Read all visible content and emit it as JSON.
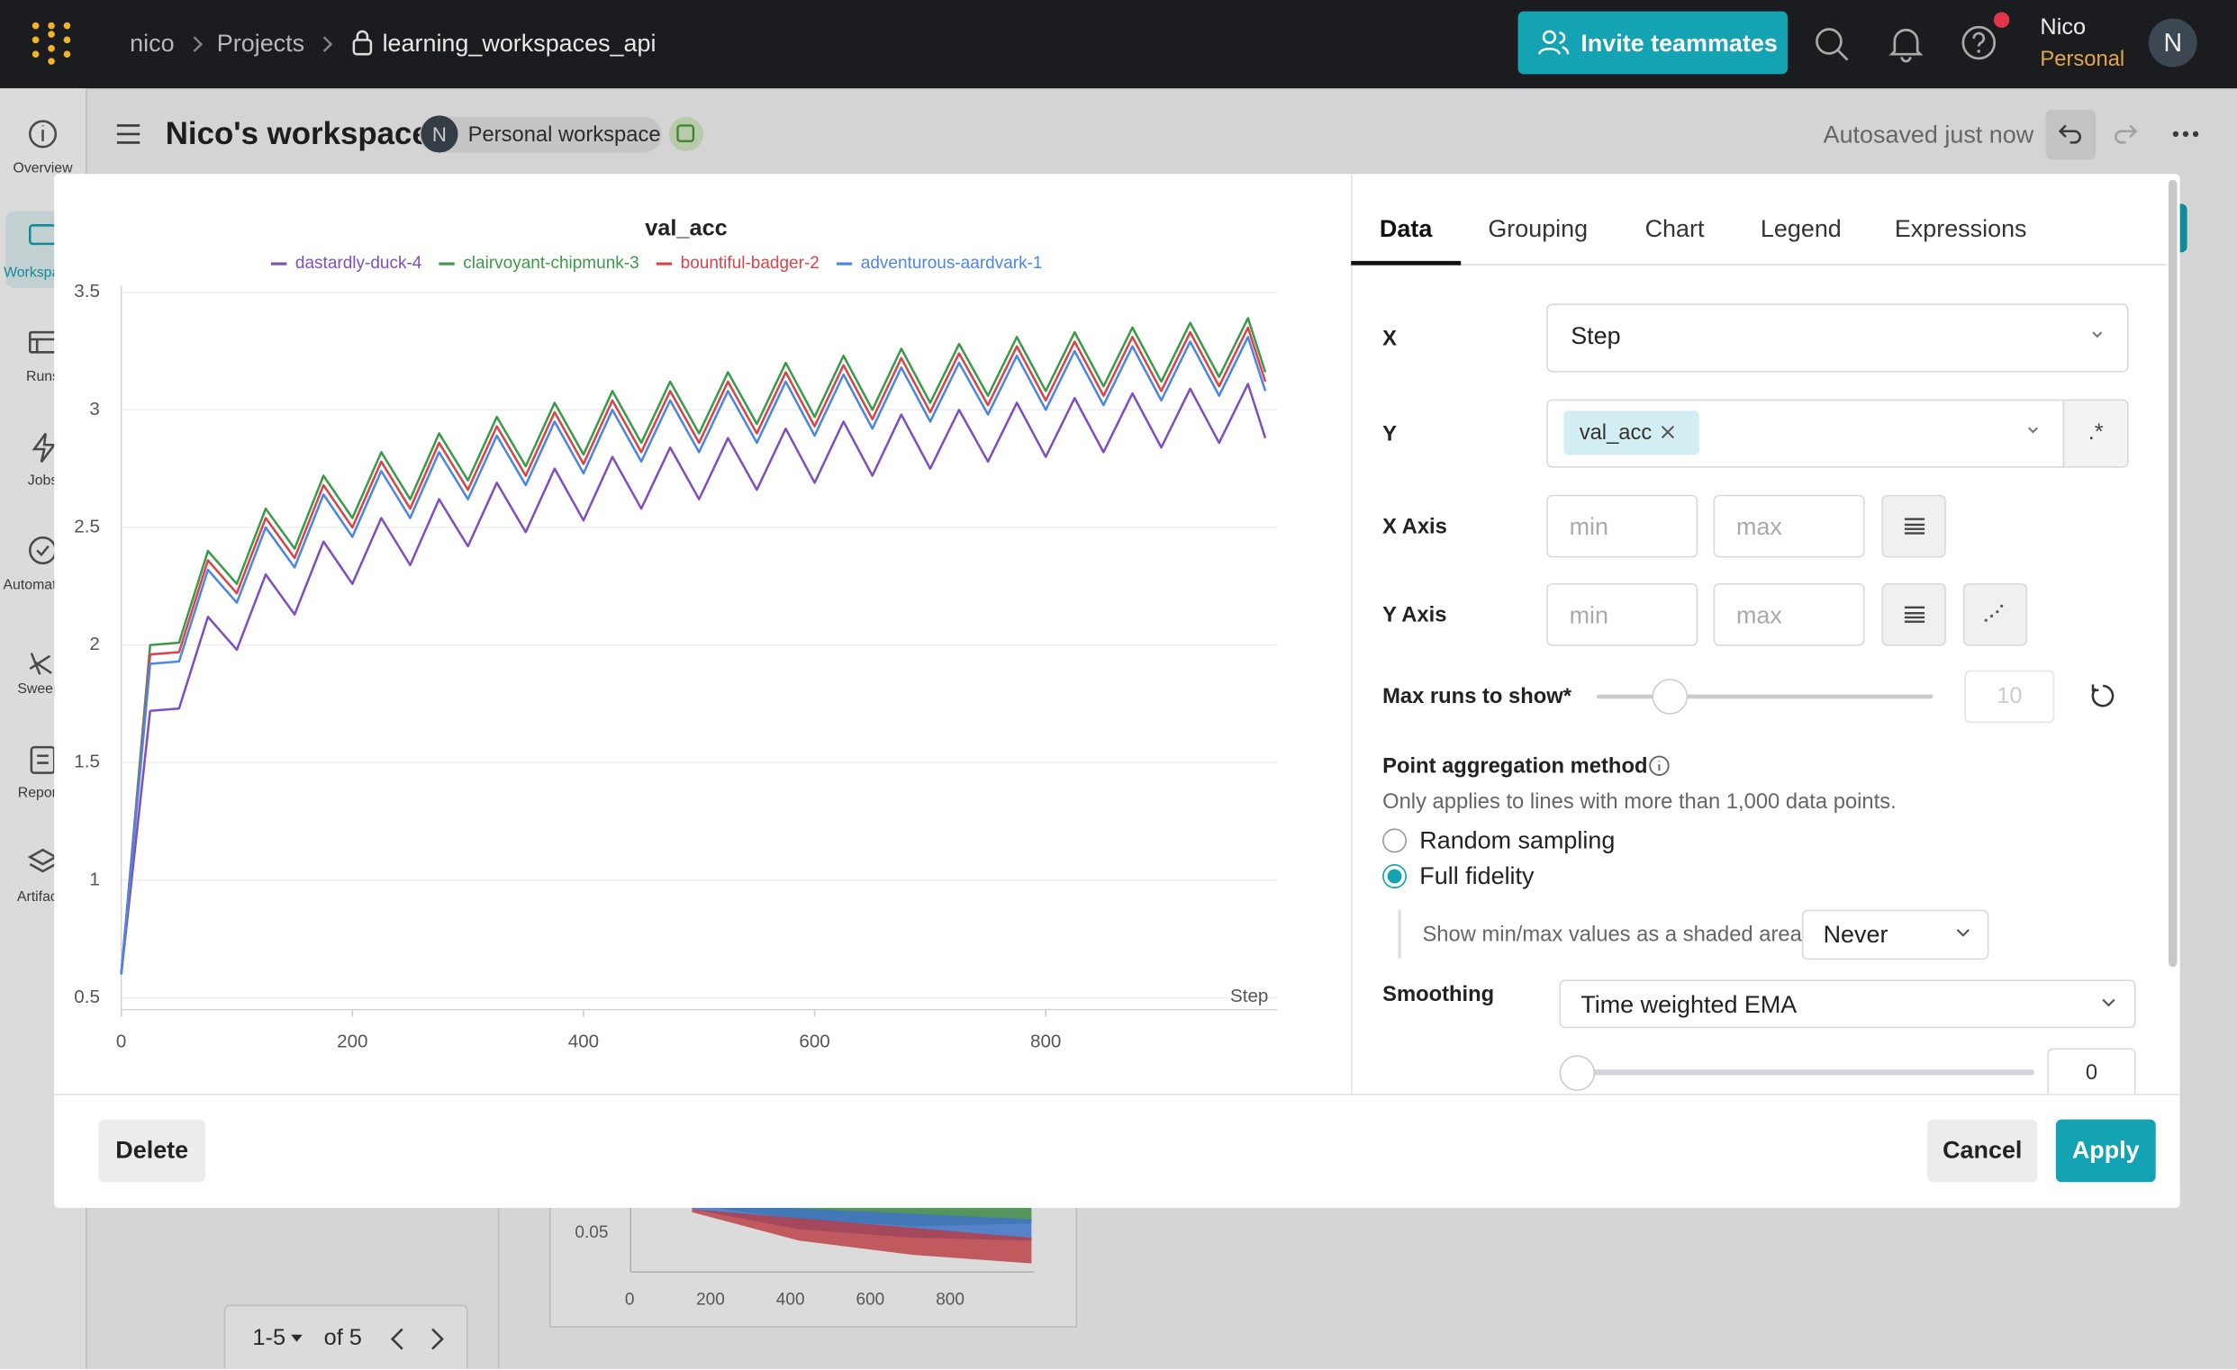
{
  "topbar": {
    "breadcrumb": [
      "nico",
      "Projects",
      "learning_workspaces_api"
    ],
    "invite_button": "Invite teammates",
    "user_name": "Nico",
    "user_plan": "Personal",
    "avatar": "N"
  },
  "sidebar": [
    "Overview",
    "Workspaces",
    "Runs",
    "Jobs",
    "Automations",
    "Sweeps",
    "Reports",
    "Artifacts"
  ],
  "workspace": {
    "title": "Nico's workspace",
    "avatar": "N",
    "badge": "Personal workspace",
    "status": "Autosaved just now"
  },
  "background_chart": {
    "ytick": "0.05",
    "xticks": [
      "0",
      "200",
      "400",
      "600",
      "800"
    ]
  },
  "pager": {
    "range": "1-5",
    "total": "of 5"
  },
  "editor": {
    "tabs": [
      "Data",
      "Grouping",
      "Chart",
      "Legend",
      "Expressions"
    ],
    "active_tab": 0,
    "x_label": "X",
    "x_value": "Step",
    "y_label": "Y",
    "y_chip": "val_acc",
    "regex": ".*",
    "x_axis": "X Axis",
    "y_axis": "Y Axis",
    "min": "min",
    "max": "max",
    "max_runs_label": "Max runs to show*",
    "max_runs": 10,
    "aggregation_title": "Point aggregation method",
    "aggregation_note": "Only applies to lines with more than 1,000 data points.",
    "options": [
      "Random sampling",
      "Full fidelity"
    ],
    "selected_option": 1,
    "shaded_label": "Show min/max values as a shaded area",
    "shaded_value": "Never",
    "smoothing_label": "Smoothing",
    "smoothing_method": "Time weighted EMA",
    "smoothing_value": 0,
    "buttons": {
      "delete": "Delete",
      "cancel": "Cancel",
      "apply": "Apply"
    }
  },
  "chart_data": {
    "type": "line",
    "title": "val_acc",
    "x_label": "Step",
    "x": [
      0,
      25,
      50,
      75,
      100,
      125,
      150,
      175,
      200,
      225,
      250,
      275,
      300,
      325,
      350,
      375,
      400,
      425,
      450,
      475,
      500,
      525,
      550,
      575,
      600,
      625,
      650,
      675,
      700,
      725,
      750,
      775,
      800,
      825,
      850,
      875,
      900,
      925,
      950,
      975,
      990
    ],
    "xlim": [
      0,
      1000
    ],
    "xticks": [
      0,
      200,
      400,
      600,
      800
    ],
    "ylim": [
      0.45,
      3.53
    ],
    "yticks": [
      0.5,
      1,
      1.5,
      2,
      2.5,
      3,
      3.5
    ],
    "grid": true,
    "series": [
      {
        "name": "dastardly-duck-4",
        "color": "#7e4fc1",
        "values": [
          0.6,
          1.72,
          1.73,
          2.12,
          1.98,
          2.3,
          2.13,
          2.44,
          2.26,
          2.54,
          2.34,
          2.62,
          2.42,
          2.69,
          2.48,
          2.75,
          2.53,
          2.8,
          2.58,
          2.84,
          2.62,
          2.88,
          2.66,
          2.92,
          2.69,
          2.95,
          2.72,
          2.98,
          2.75,
          3.0,
          2.78,
          3.03,
          2.8,
          3.05,
          2.82,
          3.07,
          2.84,
          3.09,
          2.86,
          3.11,
          2.88
        ]
      },
      {
        "name": "clairvoyant-chipmunk-3",
        "color": "#3a9a47",
        "values": [
          0.6,
          2.0,
          2.01,
          2.4,
          2.26,
          2.58,
          2.41,
          2.72,
          2.54,
          2.82,
          2.62,
          2.9,
          2.7,
          2.97,
          2.76,
          3.03,
          2.81,
          3.08,
          2.86,
          3.12,
          2.9,
          3.16,
          2.94,
          3.2,
          2.97,
          3.23,
          3.0,
          3.26,
          3.03,
          3.28,
          3.06,
          3.31,
          3.08,
          3.33,
          3.1,
          3.35,
          3.12,
          3.37,
          3.14,
          3.39,
          3.16
        ]
      },
      {
        "name": "bountiful-badger-2",
        "color": "#d9434a",
        "values": [
          0.6,
          1.96,
          1.97,
          2.36,
          2.22,
          2.54,
          2.37,
          2.68,
          2.5,
          2.78,
          2.58,
          2.86,
          2.66,
          2.93,
          2.72,
          2.99,
          2.77,
          3.04,
          2.82,
          3.08,
          2.86,
          3.12,
          2.9,
          3.16,
          2.93,
          3.19,
          2.96,
          3.22,
          2.99,
          3.24,
          3.02,
          3.27,
          3.04,
          3.29,
          3.06,
          3.31,
          3.08,
          3.33,
          3.1,
          3.35,
          3.12
        ]
      },
      {
        "name": "adventurous-aardvark-1",
        "color": "#4a86e8",
        "values": [
          0.6,
          1.92,
          1.93,
          2.32,
          2.18,
          2.5,
          2.33,
          2.64,
          2.46,
          2.74,
          2.54,
          2.82,
          2.62,
          2.89,
          2.68,
          2.95,
          2.73,
          3.0,
          2.78,
          3.04,
          2.82,
          3.08,
          2.86,
          3.12,
          2.89,
          3.15,
          2.92,
          3.18,
          2.95,
          3.2,
          2.98,
          3.23,
          3.0,
          3.25,
          3.02,
          3.27,
          3.04,
          3.29,
          3.06,
          3.31,
          3.08
        ]
      }
    ]
  }
}
